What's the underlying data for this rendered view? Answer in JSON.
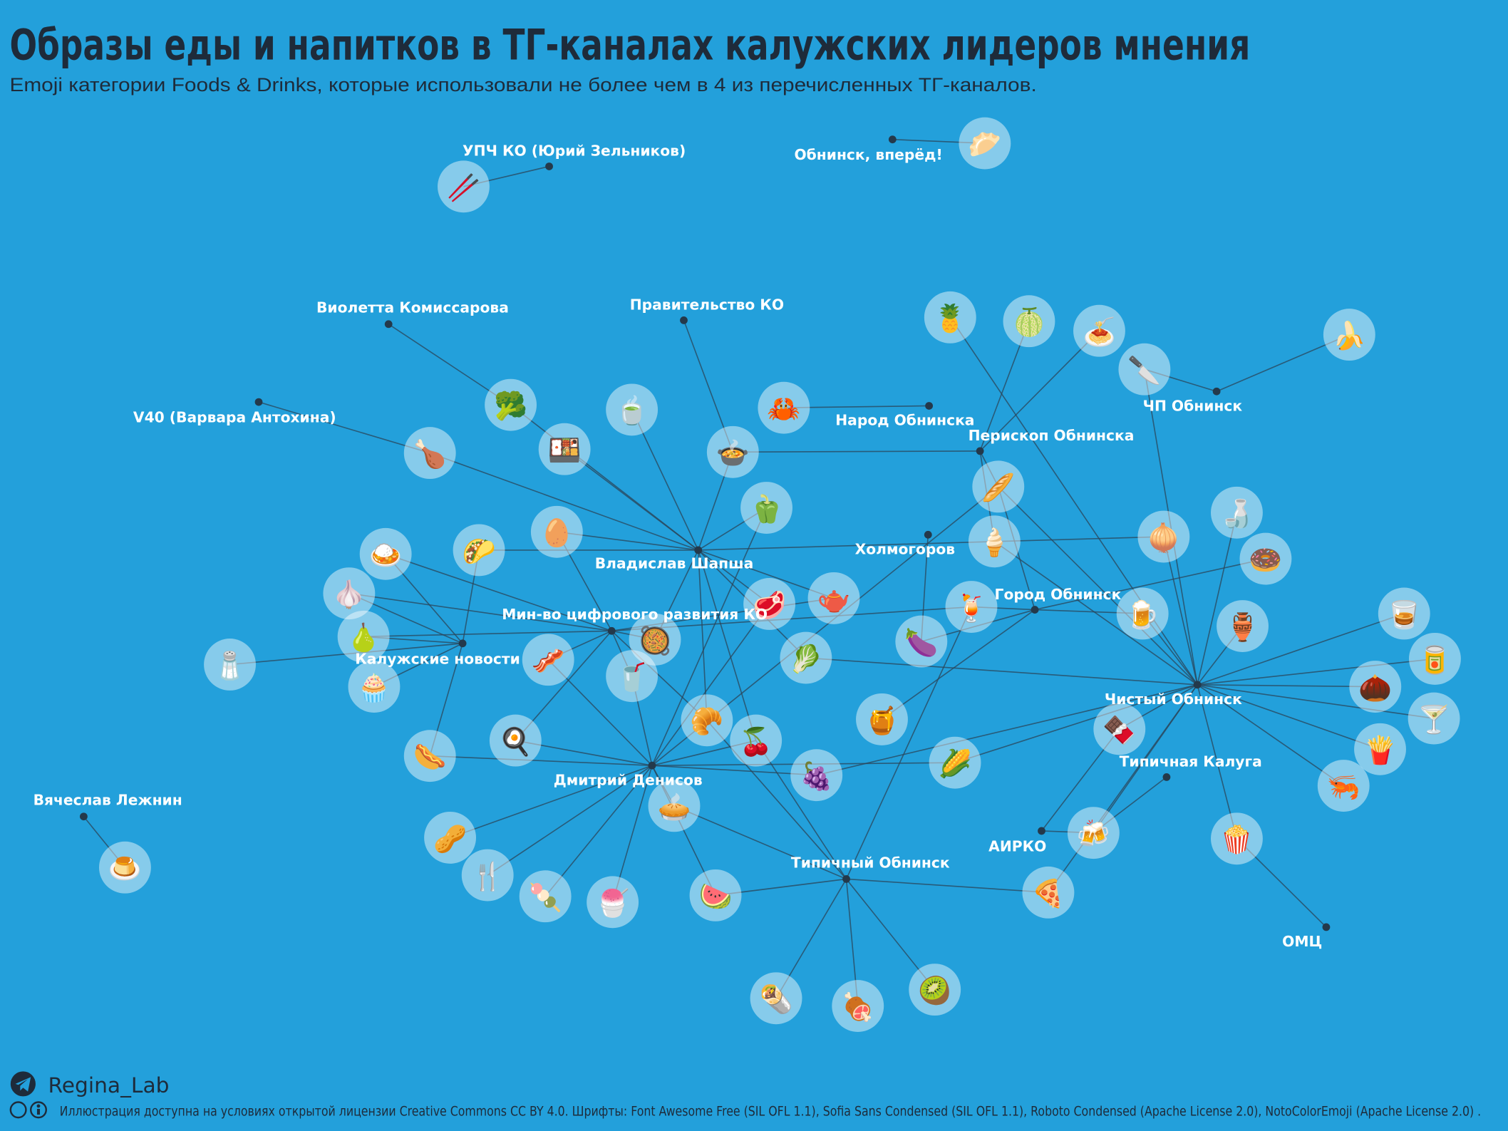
{
  "header": {
    "title": "Образы еды и напитков в ТГ-каналах калужских лидеров мнения",
    "subtitle": "Emoji категории Foods & Drinks, которые использовали не более чем в 4 из перечисленных ТГ-каналов."
  },
  "channels": [
    "УПЧ КО (Юрий Зельников)",
    "Обнинск, вперёд!",
    "Виолетта Комиссарова",
    "Правительство КО",
    "V40 (Варвара Антохина)",
    "Народ Обнинска",
    "ЧП Обнинск",
    "Перископ Обнинска",
    "Владислав Шапша",
    "Холмогоров",
    "Город Обнинск",
    "Мин-во цифрового развития КО",
    "Калужские новости",
    "Чистый Обнинск",
    "Типичная Калуга",
    "Вячеслав Лежнин",
    "Дмитрий Денисов",
    "АИРКО",
    "Типичный Обнинск",
    "ОМЦ"
  ],
  "foods": [
    "🥢",
    "🥟",
    "🍍",
    "🍈",
    "🍝",
    "🔪",
    "🍌",
    "🥦",
    "🍵",
    "🦀",
    "🍗",
    "🍱",
    "🍲",
    "🫑",
    "🥖",
    "🥚",
    "🍦",
    "🧅",
    "🍶",
    "🍛",
    "🌮",
    "🍩",
    "🧄",
    "🥩",
    "🫖",
    "🍹",
    "🍺",
    "🏺",
    "🥃",
    "🍐",
    "🥘",
    "🥬",
    "🍆",
    "🥫",
    "🧂",
    "🥓",
    "🥤",
    "🧁",
    "🌰",
    "🍸",
    "🥐",
    "🍯",
    "🍫",
    "🍳",
    "🍒",
    "🌭",
    "🍇",
    "🌽",
    "🍟",
    "🦐",
    "🍮",
    "🥜",
    "🥧",
    "🍻",
    "🍿",
    "🍴",
    "🍡",
    "🍧",
    "🍉",
    "🍕",
    "🌯",
    "🍖",
    "🥝"
  ],
  "footer": {
    "author": "Regina_Lab",
    "license": "Иллюстрация доступна на условиях открытой лицензии Creative Commons CC BY 4.0. Шрифты: Font Awesome Free (SIL OFL 1.1), Sofia Sans Condensed (SIL OFL 1.1), Roboto Condensed (Apache License 2.0), NotoColorEmoji (Apache License 2.0) ."
  }
}
